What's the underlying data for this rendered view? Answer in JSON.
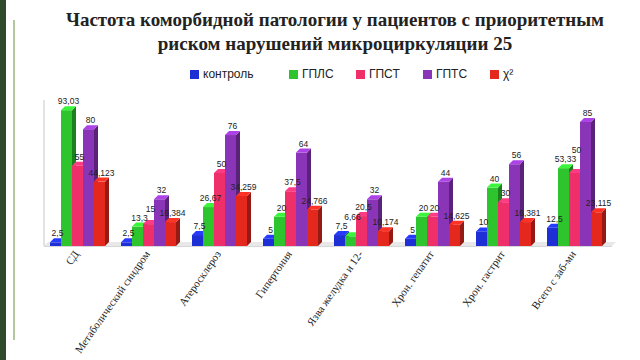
{
  "chart_data": {
    "type": "bar",
    "title": "Частота коморбидной патологии у пациентов с приоритетным риском нарушений микроциркуляции 25",
    "categories": [
      "СД",
      "Метаболический синдром",
      "Атеросклероз",
      "Гипертония",
      "Язва желудка и 12-",
      "Хрон. гепатит",
      "Хрон. гастрит",
      "Всего с заб-ми"
    ],
    "series": [
      {
        "name": "контроль",
        "color": "#1f2fd6",
        "values": [
          2.5,
          2.5,
          7.5,
          5,
          7.5,
          5,
          10,
          12.5
        ],
        "value_labels": [
          "2,5",
          "2,5",
          "7,5",
          "5",
          "7,5",
          "5",
          "10",
          "12,5"
        ]
      },
      {
        "name": "ГПЛС",
        "color": "#2ec42e",
        "values": [
          93.03,
          13.3,
          26.67,
          20,
          6.66,
          20,
          40,
          53.33
        ],
        "value_labels": [
          "93,03",
          "13,3",
          "26,67",
          "20",
          "6,66",
          "20",
          "40",
          "53,33"
        ]
      },
      {
        "name": "ГПСТ",
        "color": "#ee2f6a",
        "values": [
          55,
          15,
          50,
          37.5,
          20.5,
          20,
          30,
          50
        ],
        "value_labels": [
          "55",
          "15",
          "50",
          "37,5",
          "20,5",
          "20",
          "30",
          "50"
        ]
      },
      {
        "name": "ГПТС",
        "color": "#8a35b8",
        "values": [
          80,
          32,
          76,
          64,
          32,
          44,
          56,
          85
        ],
        "value_labels": [
          "80",
          "32",
          "76",
          "64",
          "32",
          "44",
          "56",
          "85"
        ]
      },
      {
        "name": "χ²",
        "color": "#e5281e",
        "values": [
          44.123,
          16.384,
          34.259,
          24.766,
          10.174,
          14.625,
          16.381,
          23.115
        ],
        "value_labels": [
          "44,123",
          "16,384",
          "34,259",
          "24,766",
          "10,174",
          "14,625",
          "16,381",
          "23,115"
        ]
      }
    ],
    "ylim": [
      0,
      100
    ],
    "yticks": [],
    "grid": false,
    "legend": "top",
    "data_labels": true,
    "tick_labels": "x"
  }
}
